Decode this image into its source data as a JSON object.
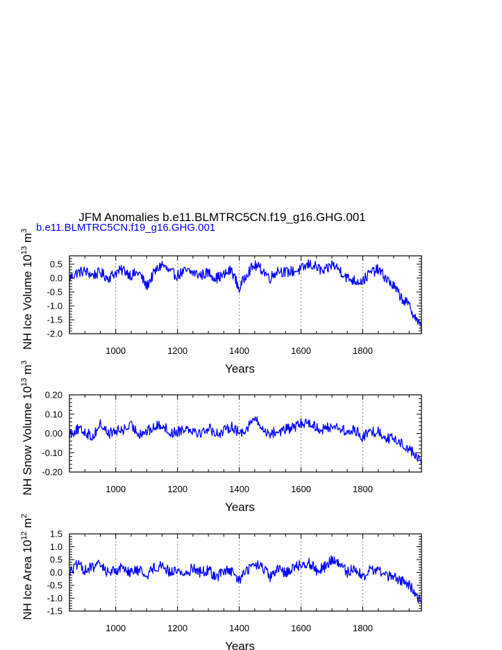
{
  "title": "JFM Anomalies b.e11.BLMTRC5CN.f19_g16.GHG.001",
  "case_label": "b.e11.BLMTRC5CN.f19_g16.GHG.001",
  "colors": {
    "line": "#0000ff",
    "axis": "#000000",
    "grid": "#888888"
  },
  "chart_data": [
    {
      "type": "line",
      "name": "ice-volume",
      "ylabel_pre": "NH Ice Volume 10",
      "ylabel_sup": "13",
      "ylabel_unit": " m",
      "ylabel_unit_sup": "3",
      "xlabel": "Years",
      "xlim": [
        850,
        1990
      ],
      "ylim": [
        -2.0,
        0.8
      ],
      "xticks": [
        1000,
        1200,
        1400,
        1600,
        1800
      ],
      "xtick_labels": [
        "1000",
        "1200",
        "1400",
        "1600",
        "1800"
      ],
      "yticks": [
        0.5,
        0.0,
        -0.5,
        -1.0,
        -1.5,
        -2.0
      ],
      "ytick_labels": [
        "0.5",
        "0.0",
        "-0.5",
        "-1.0",
        "-1.5",
        "-2.0"
      ],
      "grid_x": [
        1000,
        1200,
        1400,
        1600,
        1800
      ],
      "x": [
        850,
        875,
        900,
        925,
        950,
        975,
        1000,
        1025,
        1050,
        1075,
        1100,
        1125,
        1150,
        1175,
        1200,
        1225,
        1250,
        1275,
        1300,
        1325,
        1350,
        1375,
        1400,
        1425,
        1450,
        1475,
        1500,
        1525,
        1550,
        1575,
        1600,
        1625,
        1650,
        1675,
        1700,
        1725,
        1750,
        1775,
        1800,
        1825,
        1850,
        1875,
        1900,
        1925,
        1950,
        1975,
        1990
      ],
      "values": [
        0.0,
        0.2,
        0.25,
        0.1,
        0.2,
        0.0,
        0.2,
        0.3,
        0.1,
        0.2,
        -0.3,
        0.2,
        0.5,
        0.2,
        0.1,
        0.25,
        0.2,
        0.1,
        0.2,
        0.0,
        0.1,
        0.3,
        -0.4,
        0.2,
        0.45,
        0.3,
        0.0,
        0.3,
        0.2,
        0.25,
        0.3,
        0.5,
        0.4,
        0.2,
        0.5,
        0.3,
        0.0,
        -0.1,
        -0.1,
        0.2,
        0.3,
        0.0,
        -0.3,
        -0.7,
        -1.0,
        -1.5,
        -1.8
      ]
    },
    {
      "type": "line",
      "name": "snow-volume",
      "ylabel_pre": "NH Snow Volume 10",
      "ylabel_sup": "13",
      "ylabel_unit": " m",
      "ylabel_unit_sup": "3",
      "xlabel": "Years",
      "xlim": [
        850,
        1990
      ],
      "ylim": [
        -0.2,
        0.2
      ],
      "xticks": [
        1000,
        1200,
        1400,
        1600,
        1800
      ],
      "xtick_labels": [
        "1000",
        "1200",
        "1400",
        "1600",
        "1800"
      ],
      "yticks": [
        0.2,
        0.1,
        0.0,
        -0.1,
        -0.2
      ],
      "ytick_labels": [
        "0.20",
        "0.10",
        "0.00",
        "-0.10",
        "-0.20"
      ],
      "grid_x": [
        1000,
        1200,
        1400,
        1600,
        1800
      ],
      "x": [
        850,
        875,
        900,
        925,
        950,
        975,
        1000,
        1025,
        1050,
        1075,
        1100,
        1125,
        1150,
        1175,
        1200,
        1225,
        1250,
        1275,
        1300,
        1325,
        1350,
        1375,
        1400,
        1425,
        1450,
        1475,
        1500,
        1525,
        1550,
        1575,
        1600,
        1625,
        1650,
        1675,
        1700,
        1725,
        1750,
        1775,
        1800,
        1825,
        1850,
        1875,
        1900,
        1925,
        1950,
        1975,
        1990
      ],
      "values": [
        0.0,
        0.02,
        0.01,
        -0.02,
        0.05,
        0.0,
        0.01,
        0.02,
        0.04,
        0.0,
        0.01,
        0.03,
        0.05,
        0.0,
        0.01,
        0.03,
        0.02,
        0.0,
        0.03,
        0.0,
        0.01,
        0.04,
        0.0,
        0.03,
        0.08,
        0.02,
        0.0,
        0.01,
        0.02,
        0.03,
        0.05,
        0.06,
        0.03,
        0.02,
        0.04,
        0.03,
        0.0,
        0.02,
        -0.02,
        0.01,
        0.01,
        -0.02,
        -0.03,
        -0.05,
        -0.08,
        -0.12,
        -0.15
      ]
    },
    {
      "type": "line",
      "name": "ice-area",
      "ylabel_pre": "NH Ice Area 10",
      "ylabel_sup": "12",
      "ylabel_unit": " m",
      "ylabel_unit_sup": "2",
      "xlabel": "Years",
      "xlim": [
        850,
        1990
      ],
      "ylim": [
        -1.5,
        1.5
      ],
      "xticks": [
        1000,
        1200,
        1400,
        1600,
        1800
      ],
      "xtick_labels": [
        "1000",
        "1200",
        "1400",
        "1600",
        "1800"
      ],
      "yticks": [
        1.5,
        1.0,
        0.5,
        0.0,
        -0.5,
        -1.0,
        -1.5
      ],
      "ytick_labels": [
        "1.5",
        "1.0",
        "0.5",
        "0.0",
        "-0.5",
        "-1.0",
        "-1.5"
      ],
      "grid_x": [
        1000,
        1200,
        1400,
        1600,
        1800
      ],
      "x": [
        850,
        875,
        900,
        925,
        950,
        975,
        1000,
        1025,
        1050,
        1075,
        1100,
        1125,
        1150,
        1175,
        1200,
        1225,
        1250,
        1275,
        1300,
        1325,
        1350,
        1375,
        1400,
        1425,
        1450,
        1475,
        1500,
        1525,
        1550,
        1575,
        1600,
        1625,
        1650,
        1675,
        1700,
        1725,
        1750,
        1775,
        1800,
        1825,
        1850,
        1875,
        1900,
        1925,
        1950,
        1975,
        1990
      ],
      "values": [
        0.0,
        0.3,
        0.1,
        0.2,
        0.3,
        0.0,
        0.1,
        0.2,
        0.0,
        0.1,
        -0.1,
        0.2,
        0.3,
        0.0,
        0.1,
        -0.1,
        0.2,
        0.0,
        0.1,
        -0.2,
        0.1,
        0.0,
        -0.3,
        0.1,
        0.3,
        0.2,
        -0.2,
        0.1,
        0.0,
        0.2,
        0.3,
        0.4,
        0.1,
        0.2,
        0.5,
        0.3,
        0.0,
        0.2,
        -0.2,
        0.1,
        0.1,
        -0.1,
        -0.2,
        -0.3,
        -0.5,
        -0.9,
        -1.1
      ]
    }
  ]
}
